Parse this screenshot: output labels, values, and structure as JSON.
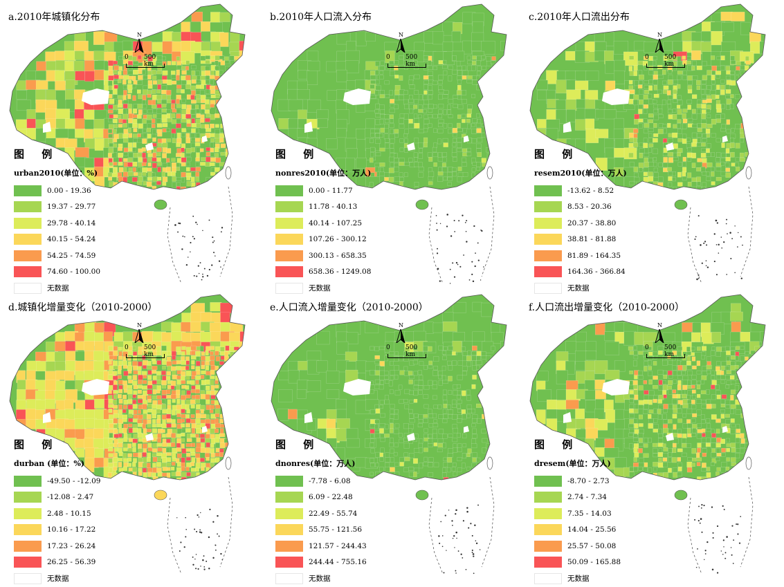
{
  "colors": {
    "class1": "#70C050",
    "class2": "#A6D652",
    "class3": "#DDEC5A",
    "class4": "#FBD75A",
    "class5": "#FA9B4E",
    "class6": "#F95456",
    "nodata": "#FFFFFF",
    "border": "#555555"
  },
  "common": {
    "legend_heading": "图 例",
    "north_label": "N",
    "scale_zero": "0",
    "scale_km": "500 km",
    "nodata_label": "无数据"
  },
  "panels": [
    {
      "title": "a.2010年城镇化分布",
      "legend_var": "urban2010(单位：%)",
      "classes": [
        "0.00 - 19.36",
        "19.37 - 29.77",
        "29.78 - 40.14",
        "40.15 - 54.24",
        "54.25 - 74.59",
        "74.60 - 100.00"
      ],
      "pattern_weights": [
        32,
        18,
        17,
        17,
        10,
        6
      ]
    },
    {
      "title": "b.2010年人口流入分布",
      "legend_var": "nonres2010(单位：万人)",
      "classes": [
        "0.00 - 11.77",
        "11.78 - 40.13",
        "40.14 - 107.25",
        "107.26 - 300.12",
        "300.13 - 658.35",
        "658.36 - 1249.08"
      ],
      "pattern_weights": [
        92,
        5,
        2,
        0.7,
        0.2,
        0.1
      ]
    },
    {
      "title": "c.2010年人口流出分布",
      "legend_var": "resem2010(单位：万人)",
      "classes": [
        "-13.62 - 8.52",
        "8.53 - 20.36",
        "20.37 - 38.80",
        "38.81 - 81.88",
        "81.89 - 164.35",
        "164.36 - 366.84"
      ],
      "pattern_weights": [
        70,
        16,
        9,
        3,
        1,
        0.3
      ]
    },
    {
      "title": "d.城镇化增量变化（2010-2000）",
      "legend_var": "durban (单位：%)",
      "classes": [
        "-49.50 - -12.09",
        "-12.08 - 2.47",
        "2.48 - 10.15",
        "10.16 - 17.22",
        "17.23 - 26.24",
        "26.25 - 56.39"
      ],
      "pattern_weights": [
        4,
        10,
        34,
        22,
        18,
        12
      ]
    },
    {
      "title": "e.人口流入增量变化（2010-2000）",
      "legend_var": "dnonres(单位：万人)",
      "classes": [
        "-7.78 - 6.08",
        "6.09 - 22.48",
        "22.49 - 55.74",
        "55.75 - 121.56",
        "121.57 - 244.43",
        "244.44 - 755.16"
      ],
      "pattern_weights": [
        93,
        4,
        1.5,
        0.7,
        0.2,
        0.1
      ]
    },
    {
      "title": "f.人口流出增量变化（2010-2000）",
      "legend_var": "dresem(单位：万人)",
      "classes": [
        "-8.70 - 2.73",
        "2.74 - 7.34",
        "7.35 - 14.03",
        "14.04 - 25.56",
        "25.57 - 50.08",
        "50.09 - 165.88"
      ],
      "pattern_weights": [
        68,
        14,
        9,
        5,
        3,
        1
      ]
    }
  ]
}
